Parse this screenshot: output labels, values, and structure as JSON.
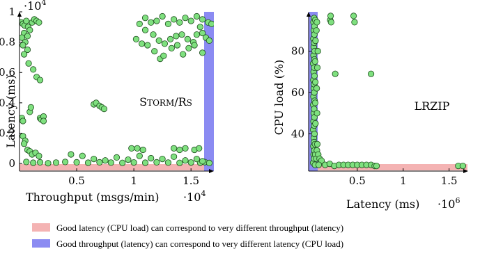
{
  "chart_data": [
    {
      "type": "scatter",
      "title": "STORM/RS",
      "xlabel": "Throughput (msgs/min)",
      "x_multiplier": "·10^4",
      "ylabel": "Latency (ms)",
      "y_multiplier": "·10^4",
      "xlim": [
        0,
        17000
      ],
      "ylim": [
        -500,
        10000
      ],
      "x_ticks": [
        5000,
        10000,
        15000
      ],
      "x_tick_labels": [
        "0.5",
        "1",
        "1.5"
      ],
      "y_ticks": [
        0,
        2000,
        4000,
        6000,
        8000,
        10000
      ],
      "y_tick_labels": [
        "0",
        "0.2",
        "0.4",
        "0.6",
        "0.8",
        "1"
      ],
      "grid": false,
      "point_color": "#7fe07f",
      "red_band_y": [
        -100,
        100
      ],
      "blue_band_x": [
        16500,
        17000
      ],
      "points": [
        [
          150,
          9300
        ],
        [
          300,
          9200
        ],
        [
          450,
          9100
        ],
        [
          600,
          9400
        ],
        [
          750,
          9000
        ],
        [
          900,
          8800
        ],
        [
          1100,
          9300
        ],
        [
          1300,
          9500
        ],
        [
          1500,
          9400
        ],
        [
          1700,
          9300
        ],
        [
          400,
          8600
        ],
        [
          700,
          8400
        ],
        [
          200,
          8300
        ],
        [
          500,
          8000
        ],
        [
          300,
          7800
        ],
        [
          700,
          7500
        ],
        [
          400,
          7200
        ],
        [
          800,
          6600
        ],
        [
          1200,
          6200
        ],
        [
          1500,
          5700
        ],
        [
          1800,
          5500
        ],
        [
          200,
          3000
        ],
        [
          300,
          2800
        ],
        [
          900,
          3400
        ],
        [
          1000,
          3700
        ],
        [
          1800,
          3000
        ],
        [
          1900,
          2900
        ],
        [
          2100,
          3100
        ],
        [
          2100,
          2800
        ],
        [
          6500,
          3900
        ],
        [
          6700,
          4000
        ],
        [
          7000,
          3800
        ],
        [
          7200,
          3700
        ],
        [
          7400,
          3600
        ],
        [
          300,
          1800
        ],
        [
          500,
          1500
        ],
        [
          400,
          1300
        ],
        [
          700,
          900
        ],
        [
          900,
          800
        ],
        [
          1100,
          600
        ],
        [
          1400,
          700
        ],
        [
          1700,
          500
        ],
        [
          600,
          100
        ],
        [
          1200,
          50
        ],
        [
          1800,
          80
        ],
        [
          2500,
          20
        ],
        [
          3200,
          60
        ],
        [
          4000,
          100
        ],
        [
          5000,
          80
        ],
        [
          6000,
          50
        ],
        [
          7000,
          80
        ],
        [
          8000,
          60
        ],
        [
          9000,
          40
        ],
        [
          10000,
          70
        ],
        [
          11000,
          50
        ],
        [
          12000,
          80
        ],
        [
          13000,
          60
        ],
        [
          14000,
          40
        ],
        [
          15000,
          70
        ],
        [
          15800,
          50
        ],
        [
          16200,
          90
        ],
        [
          16600,
          30
        ],
        [
          4500,
          600
        ],
        [
          5500,
          500
        ],
        [
          6500,
          300
        ],
        [
          7500,
          200
        ],
        [
          8500,
          400
        ],
        [
          9500,
          250
        ],
        [
          10500,
          500
        ],
        [
          11500,
          350
        ],
        [
          12500,
          300
        ],
        [
          13500,
          450
        ],
        [
          14500,
          200
        ],
        [
          15500,
          300
        ],
        [
          16000,
          150
        ],
        [
          9800,
          1000
        ],
        [
          10300,
          1000
        ],
        [
          10800,
          900
        ],
        [
          13500,
          1000
        ],
        [
          14000,
          900
        ],
        [
          14500,
          1000
        ],
        [
          15300,
          900
        ],
        [
          15700,
          1000
        ],
        [
          10200,
          8200
        ],
        [
          10700,
          7900
        ],
        [
          11200,
          7800
        ],
        [
          11700,
          8500
        ],
        [
          12200,
          8100
        ],
        [
          12700,
          7900
        ],
        [
          13200,
          8200
        ],
        [
          13700,
          8400
        ],
        [
          14200,
          8500
        ],
        [
          14700,
          8200
        ],
        [
          15200,
          8000
        ],
        [
          15500,
          8500
        ],
        [
          15800,
          9000
        ],
        [
          16000,
          8600
        ],
        [
          16300,
          8300
        ],
        [
          16600,
          8100
        ],
        [
          10500,
          9200
        ],
        [
          11000,
          9600
        ],
        [
          11500,
          9300
        ],
        [
          12000,
          9400
        ],
        [
          12500,
          9700
        ],
        [
          13000,
          9200
        ],
        [
          13500,
          9500
        ],
        [
          14000,
          9300
        ],
        [
          14500,
          9600
        ],
        [
          15000,
          9400
        ],
        [
          15500,
          9700
        ],
        [
          16000,
          9500
        ],
        [
          16500,
          9300
        ],
        [
          16800,
          9200
        ],
        [
          11000,
          8800
        ],
        [
          11800,
          7400
        ],
        [
          12300,
          6900
        ],
        [
          12600,
          7100
        ],
        [
          13300,
          7600
        ],
        [
          13800,
          7800
        ],
        [
          14300,
          7200
        ],
        [
          14800,
          7600
        ],
        [
          15300,
          7800
        ],
        [
          16000,
          7300
        ]
      ]
    },
    {
      "type": "scatter",
      "title": "LRZIP",
      "xlabel": "Latency (ms)",
      "x_multiplier": "·10^6",
      "ylabel": "CPU load (%)",
      "xlim": [
        -30000,
        1700000
      ],
      "ylim": [
        22,
        99
      ],
      "x_ticks": [
        500000,
        1000000,
        1500000
      ],
      "x_tick_labels": [
        "0.5",
        "1",
        "1.5"
      ],
      "y_ticks": [
        40,
        60,
        80
      ],
      "y_tick_labels": [
        "40",
        "60",
        "80"
      ],
      "grid": false,
      "point_color": "#7fe07f",
      "red_band_y": [
        23.5,
        26.5
      ],
      "blue_band_x": [
        -30000,
        20000
      ],
      "points": [
        [
          20000,
          26
        ],
        [
          25000,
          30
        ],
        [
          22000,
          34
        ],
        [
          28000,
          38
        ],
        [
          20000,
          42
        ],
        [
          24000,
          46
        ],
        [
          26000,
          50
        ],
        [
          21000,
          54
        ],
        [
          23000,
          58
        ],
        [
          27000,
          62
        ],
        [
          22000,
          66
        ],
        [
          25000,
          70
        ],
        [
          20000,
          74
        ],
        [
          24000,
          78
        ],
        [
          26000,
          82
        ],
        [
          22000,
          86
        ],
        [
          27000,
          90
        ],
        [
          23000,
          94
        ],
        [
          30000,
          28
        ],
        [
          32000,
          32
        ],
        [
          30000,
          36
        ],
        [
          34000,
          40
        ],
        [
          31000,
          44
        ],
        [
          33000,
          48
        ],
        [
          30000,
          52
        ],
        [
          35000,
          56
        ],
        [
          32000,
          60
        ],
        [
          30000,
          64
        ],
        [
          34000,
          68
        ],
        [
          31000,
          72
        ],
        [
          33000,
          76
        ],
        [
          35000,
          80
        ],
        [
          30000,
          84
        ],
        [
          32000,
          88
        ],
        [
          34000,
          92
        ],
        [
          31000,
          96
        ],
        [
          42000,
          30
        ],
        [
          40000,
          35
        ],
        [
          44000,
          45
        ],
        [
          41000,
          55
        ],
        [
          43000,
          65
        ],
        [
          40000,
          75
        ],
        [
          45000,
          85
        ],
        [
          42000,
          95
        ],
        [
          55000,
          28
        ],
        [
          60000,
          32
        ],
        [
          65000,
          35
        ],
        [
          75000,
          30
        ],
        [
          90000,
          28
        ],
        [
          110000,
          27
        ],
        [
          40000,
          25
        ],
        [
          80000,
          25
        ],
        [
          150000,
          25
        ],
        [
          200000,
          25.5
        ],
        [
          250000,
          24.5
        ],
        [
          300000,
          25
        ],
        [
          350000,
          25
        ],
        [
          400000,
          25
        ],
        [
          450000,
          25
        ],
        [
          500000,
          25
        ],
        [
          550000,
          25
        ],
        [
          600000,
          25
        ],
        [
          650000,
          25
        ],
        [
          690000,
          24.5
        ],
        [
          710000,
          24.5
        ],
        [
          1600000,
          24.5
        ],
        [
          1650000,
          24.5
        ],
        [
          205000,
          95
        ],
        [
          210000,
          97
        ],
        [
          215000,
          94
        ],
        [
          460000,
          97
        ],
        [
          470000,
          94
        ],
        [
          260000,
          69
        ],
        [
          650000,
          69
        ],
        [
          60000,
          94
        ],
        [
          55000,
          90
        ],
        [
          70000,
          80
        ],
        [
          65000,
          72
        ],
        [
          58000,
          62
        ],
        [
          62000,
          50
        ]
      ]
    }
  ],
  "legend": {
    "items": [
      {
        "label": "Good latency (CPU load) can correspond to very different throughput (latency)",
        "color": "#f4b3b3"
      },
      {
        "label": "Good throughput (latency) can correspond to very different latency (CPU load)",
        "color": "#8b8bf2"
      }
    ]
  }
}
